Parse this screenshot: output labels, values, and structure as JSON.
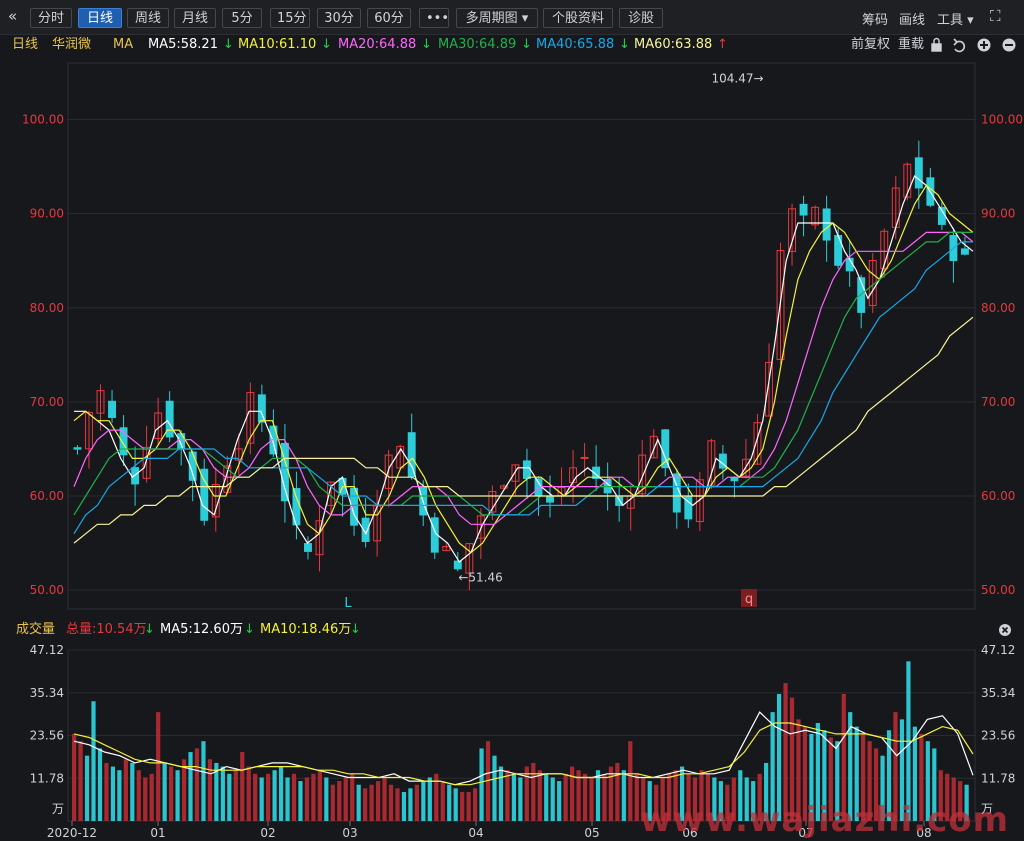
{
  "toolbar": {
    "back_glyph": "«",
    "buttons": [
      "分时",
      "日线",
      "周线",
      "月线",
      "5分",
      "15分",
      "30分",
      "60分",
      "•••",
      "多周期图 ▾",
      "个股资料",
      "诊股"
    ],
    "active_index": 1,
    "right": [
      "筹码",
      "画线",
      "工具 ▾"
    ],
    "fullscreen_glyph": "⛶"
  },
  "legend": {
    "period": "日线",
    "stock": "华润微",
    "ma_label": "MA",
    "items": [
      {
        "text": "MA5:58.21",
        "arrow": "↓",
        "color": "#ffffff"
      },
      {
        "text": "MA10:61.10",
        "arrow": "↓",
        "color": "#f2f23a"
      },
      {
        "text": "MA20:64.88",
        "arrow": "↓",
        "color": "#ff66ff"
      },
      {
        "text": "MA30:64.89",
        "arrow": "↓",
        "color": "#22b04a"
      },
      {
        "text": "MA40:65.88",
        "arrow": "↓",
        "color": "#1aa7e8"
      },
      {
        "text": "MA60:63.88",
        "arrow": "↑",
        "color": "#f7f29a"
      }
    ],
    "right": [
      "前复权",
      "重载"
    ],
    "icons": [
      "lock-icon",
      "undo-icon",
      "plus-circle-icon",
      "minus-circle-icon"
    ]
  },
  "colors": {
    "up": "#e8383d",
    "down": "#2ccdd8",
    "grid": "#2a2c31",
    "axis_text_red": "#e8383d",
    "axis_text_plain": "#cfd2d8",
    "up_vol": "#a82a30",
    "down_vol": "#2bc4cf"
  },
  "chart_data": [
    {
      "type": "candlestick",
      "title": "华润微 日线",
      "ylim": [
        48,
        106
      ],
      "y_ticks": [
        "100.00",
        "90.00",
        "80.00",
        "70.00",
        "60.00",
        "50.00"
      ],
      "x_month_labels": [
        "2020-12",
        "01",
        "02",
        "03",
        "04",
        "05",
        "06",
        "07",
        "08"
      ],
      "annotations": {
        "high": "104.47→",
        "low": "←51.46",
        "marker_left": "L",
        "marker_right": "q"
      },
      "close_path": [
        65,
        69,
        71,
        68,
        64,
        62,
        66,
        69,
        67,
        65,
        62,
        58,
        61,
        64,
        66,
        70,
        68,
        65,
        60,
        56,
        54,
        58,
        62,
        60,
        57,
        56,
        60,
        64,
        66,
        62,
        58,
        55,
        54,
        52,
        55,
        58,
        60,
        62,
        64,
        62,
        60,
        59,
        61,
        63,
        64,
        62,
        60,
        59,
        61,
        64,
        67,
        62,
        59,
        58,
        61,
        65,
        63,
        62,
        64,
        68,
        75,
        86,
        90,
        89,
        90,
        88,
        85,
        83,
        80,
        84,
        88,
        92,
        95,
        93,
        91,
        88,
        86,
        85
      ],
      "series": [
        {
          "name": "MA5",
          "color": "#ffffff",
          "values": [
            69,
            69,
            68,
            67,
            64,
            62,
            63,
            67,
            68,
            66,
            63,
            59,
            58,
            62,
            66,
            69,
            69,
            66,
            61,
            57,
            55,
            56,
            61,
            62,
            58,
            56,
            59,
            63,
            65,
            63,
            59,
            56,
            55,
            53,
            54,
            57,
            59,
            61,
            63,
            63,
            61,
            60,
            60,
            62,
            63,
            62,
            61,
            59,
            60,
            63,
            66,
            63,
            60,
            59,
            60,
            64,
            63,
            62,
            64,
            68,
            76,
            85,
            89,
            89,
            89,
            89,
            86,
            84,
            81,
            83,
            87,
            91,
            94,
            93,
            91,
            89,
            87,
            86
          ]
        },
        {
          "name": "MA10",
          "color": "#f2f23a",
          "values": [
            68,
            69,
            68,
            68,
            66,
            64,
            64,
            65,
            67,
            67,
            65,
            62,
            60,
            60,
            63,
            66,
            68,
            68,
            64,
            60,
            57,
            56,
            58,
            61,
            61,
            58,
            58,
            60,
            63,
            64,
            62,
            59,
            57,
            55,
            54,
            55,
            57,
            59,
            61,
            62,
            62,
            61,
            60,
            61,
            62,
            62,
            62,
            61,
            60,
            61,
            63,
            64,
            62,
            60,
            60,
            62,
            63,
            62,
            63,
            65,
            70,
            77,
            83,
            86,
            88,
            89,
            88,
            86,
            84,
            83,
            85,
            88,
            91,
            93,
            92,
            90,
            89,
            88
          ]
        },
        {
          "name": "MA20",
          "color": "#ff66ff",
          "values": [
            61,
            64,
            66,
            67,
            67,
            66,
            65,
            65,
            65,
            66,
            66,
            65,
            63,
            62,
            62,
            63,
            65,
            66,
            66,
            64,
            61,
            59,
            58,
            58,
            59,
            59,
            59,
            59,
            60,
            61,
            61,
            61,
            60,
            58,
            57,
            57,
            57,
            58,
            59,
            60,
            61,
            61,
            61,
            61,
            61,
            61,
            62,
            62,
            61,
            61,
            61,
            62,
            62,
            62,
            61,
            61,
            62,
            62,
            62,
            63,
            65,
            68,
            72,
            76,
            80,
            83,
            85,
            86,
            86,
            86,
            86,
            86,
            87,
            88,
            88,
            88,
            88,
            87
          ]
        },
        {
          "name": "MA30",
          "color": "#22b04a",
          "values": [
            58,
            60,
            62,
            64,
            65,
            65,
            65,
            65,
            65,
            65,
            65,
            65,
            64,
            63,
            62,
            62,
            63,
            64,
            64,
            64,
            63,
            61,
            60,
            59,
            59,
            59,
            59,
            59,
            59,
            60,
            60,
            60,
            60,
            60,
            59,
            58,
            58,
            58,
            58,
            59,
            60,
            60,
            60,
            60,
            60,
            61,
            61,
            61,
            61,
            61,
            61,
            61,
            61,
            61,
            61,
            61,
            61,
            61,
            62,
            62,
            63,
            65,
            67,
            70,
            73,
            76,
            79,
            81,
            82,
            83,
            84,
            85,
            86,
            87,
            87,
            88,
            88,
            88
          ]
        },
        {
          "name": "MA40",
          "color": "#1aa7e8",
          "values": [
            56,
            58,
            59,
            61,
            62,
            63,
            64,
            64,
            64,
            65,
            65,
            65,
            65,
            64,
            64,
            63,
            63,
            63,
            63,
            63,
            63,
            62,
            61,
            60,
            60,
            60,
            59,
            59,
            59,
            59,
            59,
            59,
            59,
            59,
            59,
            59,
            58,
            58,
            58,
            58,
            59,
            59,
            59,
            59,
            60,
            60,
            60,
            60,
            60,
            60,
            61,
            61,
            61,
            61,
            61,
            61,
            61,
            61,
            61,
            61,
            62,
            63,
            64,
            66,
            68,
            71,
            73,
            75,
            77,
            79,
            80,
            81,
            82,
            84,
            85,
            86,
            87,
            87
          ]
        },
        {
          "name": "MA60",
          "color": "#f7f29a",
          "values": [
            55,
            56,
            57,
            57,
            58,
            58,
            59,
            59,
            60,
            60,
            61,
            61,
            61,
            61,
            62,
            62,
            63,
            63,
            64,
            64,
            64,
            64,
            64,
            64,
            64,
            63,
            63,
            62,
            62,
            62,
            61,
            61,
            61,
            60,
            60,
            60,
            60,
            60,
            60,
            60,
            60,
            60,
            60,
            60,
            60,
            60,
            60,
            60,
            60,
            60,
            60,
            60,
            60,
            60,
            60,
            60,
            60,
            60,
            60,
            60,
            61,
            61,
            62,
            63,
            64,
            65,
            66,
            67,
            69,
            70,
            71,
            72,
            73,
            74,
            75,
            77,
            78,
            79
          ]
        }
      ]
    },
    {
      "type": "bar",
      "title": "成交量",
      "ylim": [
        0,
        47.12
      ],
      "y_ticks": [
        "47.12",
        "35.34",
        "23.56",
        "11.78",
        "万"
      ],
      "unit": "万",
      "values": [
        24,
        22,
        18,
        33,
        20,
        16,
        15,
        14,
        17,
        16,
        14,
        12,
        13,
        30,
        16,
        15,
        14,
        17,
        19,
        20,
        22,
        17,
        16,
        15,
        13,
        14,
        19,
        15,
        13,
        12,
        13,
        14,
        15,
        12,
        13,
        11,
        12,
        13,
        14,
        12,
        10,
        11,
        12,
        13,
        10,
        9,
        10,
        11,
        12,
        10,
        9,
        8,
        9,
        10,
        11,
        12,
        13,
        11,
        10,
        9,
        8,
        8,
        9,
        20,
        22,
        18,
        15,
        14,
        13,
        12,
        15,
        16,
        14,
        13,
        12,
        11,
        13,
        15,
        14,
        13,
        12,
        14,
        13,
        15,
        16,
        14,
        22,
        13,
        12,
        11,
        10,
        12,
        13,
        14,
        15,
        13,
        12,
        14,
        13,
        12,
        11,
        10,
        12,
        14,
        12,
        11,
        13,
        16,
        30,
        35,
        38,
        34,
        28,
        26,
        24,
        27,
        25,
        23,
        22,
        35,
        30,
        26,
        24,
        22,
        20,
        18,
        25,
        30,
        28,
        44,
        26,
        24,
        22,
        20,
        14,
        13,
        12,
        11,
        10
      ],
      "series": [
        {
          "name": "MA5",
          "color": "#ffffff",
          "values": [
            22,
            21,
            19,
            18,
            16,
            17,
            16,
            15,
            14,
            13,
            15,
            14,
            15,
            16,
            16,
            15,
            14,
            13,
            12,
            12,
            12,
            13,
            11,
            11,
            11,
            10,
            11,
            13,
            14,
            13,
            12,
            13,
            13,
            12,
            12,
            13,
            13,
            12,
            12,
            13,
            14,
            13,
            13,
            14,
            22,
            30,
            26,
            24,
            25,
            24,
            20,
            26,
            24,
            23,
            18,
            22,
            28,
            29,
            24,
            12.6
          ]
        },
        {
          "name": "MA10",
          "color": "#f2f23a",
          "values": [
            24,
            23,
            21,
            19,
            17,
            16,
            16,
            15,
            15,
            14,
            14,
            14,
            15,
            15,
            15,
            15,
            14,
            14,
            13,
            13,
            12,
            12,
            12,
            11,
            11,
            10,
            10,
            11,
            12,
            13,
            13,
            13,
            13,
            12,
            12,
            12,
            13,
            13,
            12,
            12,
            13,
            13,
            14,
            15,
            19,
            25,
            27,
            27,
            26,
            25,
            24,
            24,
            24,
            23,
            22,
            22,
            24,
            26,
            25,
            18.46
          ]
        }
      ],
      "legend": {
        "label": "成交量",
        "total": "总量:10.54万",
        "total_arrow": "↓",
        "ma5": "MA5:12.60万",
        "ma5_arrow": "↓",
        "ma10": "MA10:18.46万",
        "ma10_arrow": "↓"
      }
    }
  ],
  "watermark": "www.wajiazhi.com"
}
